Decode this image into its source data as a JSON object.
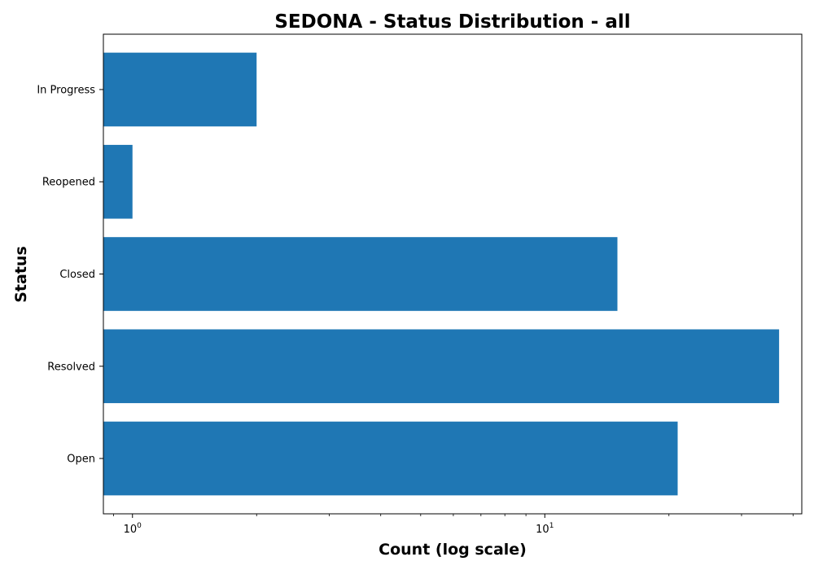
{
  "chart_data": {
    "type": "bar",
    "orientation": "horizontal",
    "title": "SEDONA - Status Distribution - all",
    "xlabel": "Count (log scale)",
    "ylabel": "Status",
    "x_scale": "log",
    "xlim": [
      0.85,
      42
    ],
    "x_ticks": [
      {
        "base": "10",
        "exponent": "0",
        "value": 1
      },
      {
        "base": "10",
        "exponent": "1",
        "value": 10
      }
    ],
    "categories": [
      "In Progress",
      "Reopened",
      "Closed",
      "Resolved",
      "Open"
    ],
    "values": [
      2,
      1,
      15,
      37,
      21
    ],
    "bar_color": "#1f77b4",
    "grid": false,
    "legend": "none"
  }
}
